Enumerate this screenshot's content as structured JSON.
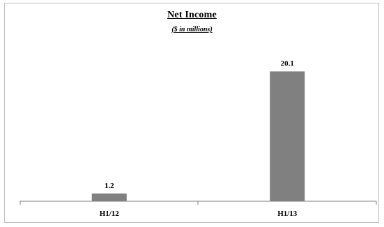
{
  "chart_data": {
    "type": "bar",
    "title": "Net Income",
    "subtitle": "($ in millions)",
    "categories": [
      "H1/12",
      "H1/13"
    ],
    "values": [
      1.2,
      20.1
    ],
    "data_labels": [
      "1.2",
      "20.1"
    ],
    "xlabel": "",
    "ylabel": "",
    "ylim": [
      0,
      25
    ],
    "grid": false,
    "legend": "none",
    "bar_color": "#808080"
  }
}
